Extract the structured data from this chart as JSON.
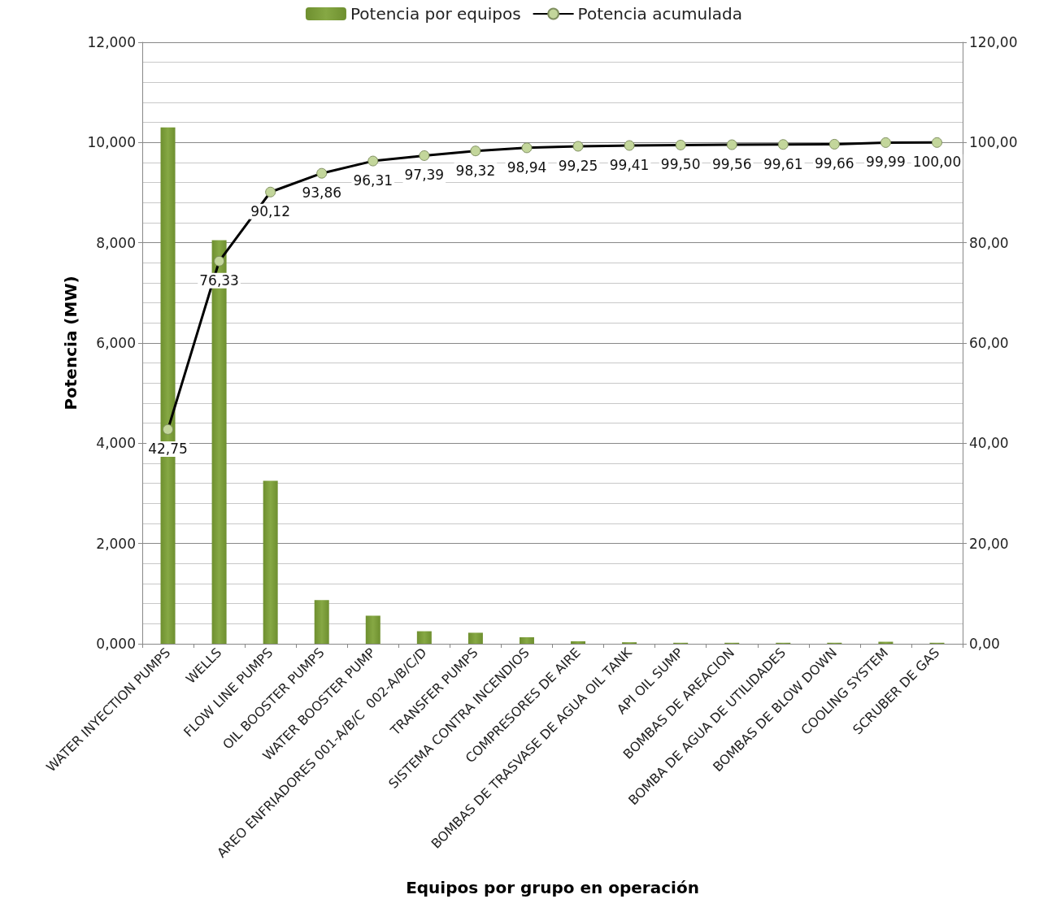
{
  "chart_data": {
    "type": "bar",
    "xlabel": "Equipos por grupo en operación",
    "ylabel": "Potencia (MW)",
    "categories": [
      "WATER INYECTION PUMPS",
      "WELLS",
      "FLOW LINE PUMPS",
      "OIL BOOSTER PUMPS",
      "WATER BOOSTER PUMP",
      "AREO ENFRIADORES 001-A/B/C  002-A/B/C/D",
      "TRANSFER PUMPS",
      "SISTEMA CONTRA INCENDIOS",
      "COMPRESORES DE AIRE",
      "BOMBAS DE TRASVASE DE AGUA OIL TANK",
      "API OIL SUMP",
      "BOMBAS DE AREACION",
      "BOMBA DE AGUA DE UTILIDADES",
      "BOMBAS DE BLOW DOWN",
      "COOLING SYSTEM",
      "SCRUBER DE GAS"
    ],
    "series": [
      {
        "name": "Potencia por equipos",
        "color": "#6e8f2f",
        "values": [
          10.3,
          8.05,
          3.25,
          0.87,
          0.56,
          0.25,
          0.22,
          0.13,
          0.05,
          0.03,
          0.02,
          0.02,
          0.02,
          0.02,
          0.04,
          0.02
        ]
      },
      {
        "name": "Potencia acumulada",
        "type": "line",
        "axis": "y2",
        "color": "#000000",
        "marker": "circle",
        "values": [
          42.75,
          76.33,
          90.12,
          93.86,
          96.31,
          97.39,
          98.32,
          98.94,
          99.25,
          99.41,
          99.5,
          99.56,
          99.61,
          99.66,
          99.99,
          100.0
        ],
        "value_labels": [
          "42,75",
          "76,33",
          "90,12",
          "93,86",
          "96,31",
          "97,39",
          "98,32",
          "98,94",
          "99,25",
          "99,41",
          "99,50",
          "99,56",
          "99,61",
          "99,66",
          "99,99",
          "100,00"
        ]
      }
    ],
    "ylim": [
      0,
      12
    ],
    "yticks": [
      {
        "value": 0,
        "label": "0,000"
      },
      {
        "value": 2,
        "label": "2,000"
      },
      {
        "value": 4,
        "label": "4,000"
      },
      {
        "value": 6,
        "label": "6,000"
      },
      {
        "value": 8,
        "label": "8,000"
      },
      {
        "value": 10,
        "label": "10,000"
      },
      {
        "value": 12,
        "label": "12,000"
      }
    ],
    "y2lim": [
      0,
      120
    ],
    "y2ticks": [
      {
        "value": 0,
        "label": "0,00"
      },
      {
        "value": 20,
        "label": "20,00"
      },
      {
        "value": 40,
        "label": "40,00"
      },
      {
        "value": 60,
        "label": "60,00"
      },
      {
        "value": 80,
        "label": "80,00"
      },
      {
        "value": 100,
        "label": "100,00"
      },
      {
        "value": 120,
        "label": "120,00"
      }
    ],
    "grid": "y",
    "legend": "top"
  }
}
